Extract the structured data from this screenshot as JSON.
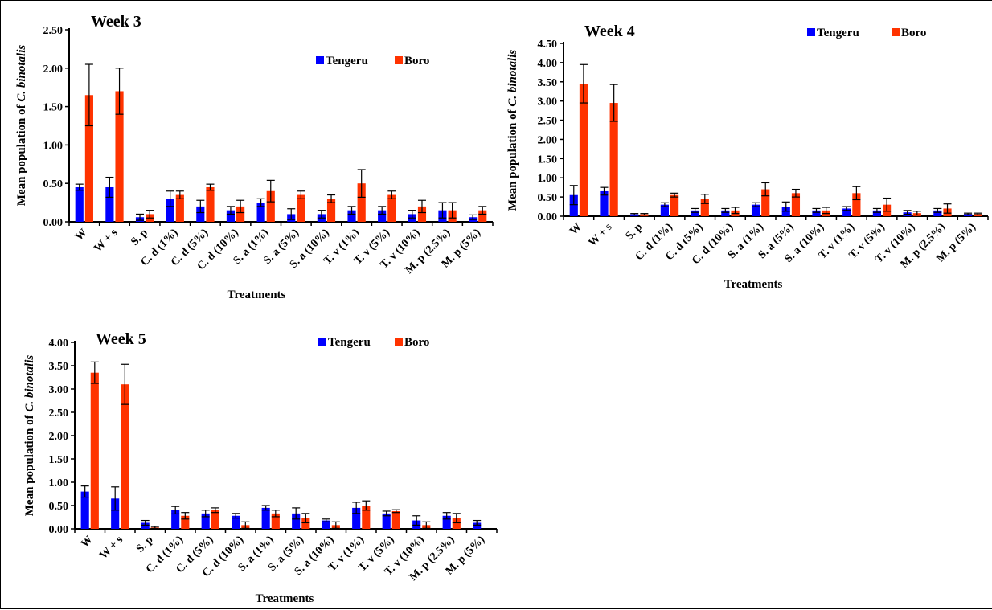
{
  "colors": {
    "tengeru": "#0000ff",
    "boro": "#ff3300"
  },
  "legend": [
    "Tengeru",
    "Boro"
  ],
  "chart_data": [
    {
      "type": "bar",
      "title": "Week 3",
      "xlabel": "Treatments",
      "ylabel_prefix": "Mean population  of ",
      "ylabel_italic": "C. binotalis",
      "ylim": [
        0,
        2.5
      ],
      "yticks": [
        "0.00",
        "0.50",
        "1.00",
        "1.50",
        "2.00",
        "2.50"
      ],
      "legend_position": "top-right",
      "categories": [
        "W",
        "W + s",
        "S. p",
        "C. d (1%)",
        "C. d (5%)",
        "C. d (10%)",
        "S. a (1%)",
        "S. a (5%)",
        "S. a (10%)",
        "T. v (1%)",
        "T. v (5%)",
        "T. v (10%)",
        "M. p (2.5%)",
        "M. p (5%)"
      ],
      "series": [
        {
          "name": "Tengeru",
          "values": [
            0.45,
            0.45,
            0.06,
            0.3,
            0.2,
            0.15,
            0.25,
            0.1,
            0.1,
            0.15,
            0.15,
            0.1,
            0.15,
            0.06
          ],
          "errors": [
            0.04,
            0.13,
            0.04,
            0.1,
            0.08,
            0.05,
            0.05,
            0.07,
            0.05,
            0.05,
            0.05,
            0.05,
            0.1,
            0.03
          ]
        },
        {
          "name": "Boro",
          "values": [
            1.65,
            1.7,
            0.1,
            0.35,
            0.45,
            0.2,
            0.4,
            0.35,
            0.3,
            0.5,
            0.35,
            0.2,
            0.15,
            0.15
          ],
          "errors": [
            0.4,
            0.3,
            0.05,
            0.05,
            0.04,
            0.08,
            0.14,
            0.05,
            0.05,
            0.18,
            0.05,
            0.08,
            0.1,
            0.05
          ]
        }
      ]
    },
    {
      "type": "bar",
      "title": "Week 4",
      "xlabel": "Treatments",
      "ylabel_prefix": "Mean population  of ",
      "ylabel_italic": "C. binotalis",
      "ylim": [
        0,
        4.5
      ],
      "yticks": [
        "0.00",
        "0.50",
        "1.00",
        "1.50",
        "2.00",
        "2.50",
        "3.00",
        "3.50",
        "4.00",
        "4.50"
      ],
      "legend_position": "top-right",
      "categories": [
        "W",
        "W + s",
        "S. p",
        "C. d (1%)",
        "C. d (5%)",
        "C. d (10%)",
        "S. a (1%)",
        "S. a (5%)",
        "S. a (10%)",
        "T. v (1%)",
        "T. v (5%)",
        "T. v (10%)",
        "M. p (2.5%)",
        "M. p (5%)"
      ],
      "series": [
        {
          "name": "Tengeru",
          "values": [
            0.55,
            0.65,
            0.05,
            0.3,
            0.15,
            0.15,
            0.3,
            0.25,
            0.15,
            0.2,
            0.15,
            0.1,
            0.15,
            0.06
          ],
          "errors": [
            0.25,
            0.1,
            0.02,
            0.05,
            0.05,
            0.05,
            0.05,
            0.12,
            0.05,
            0.05,
            0.05,
            0.05,
            0.05,
            0.02
          ]
        },
        {
          "name": "Boro",
          "values": [
            3.45,
            2.95,
            0.05,
            0.55,
            0.45,
            0.15,
            0.7,
            0.6,
            0.15,
            0.6,
            0.3,
            0.08,
            0.2,
            0.06
          ],
          "errors": [
            0.5,
            0.48,
            0.02,
            0.05,
            0.12,
            0.08,
            0.17,
            0.1,
            0.08,
            0.17,
            0.17,
            0.05,
            0.12,
            0.02
          ]
        }
      ]
    },
    {
      "type": "bar",
      "title": "Week 5",
      "xlabel": "Treatments",
      "ylabel_prefix": "Mean population  of ",
      "ylabel_italic": "C. binotalis",
      "ylim": [
        0,
        4.0
      ],
      "yticks": [
        "0.00",
        "0.50",
        "1.00",
        "1.50",
        "2.00",
        "2.50",
        "3.00",
        "3.50",
        "4.00"
      ],
      "legend_position": "top-right",
      "categories": [
        "W",
        "W + s",
        "S. p",
        "C. d (1%)",
        "C. d (5%)",
        "C. d (10%)",
        "S. a (1%)",
        "S. a (5%)",
        "S. a (10%)",
        "T. v (1%)",
        "T. v (5%)",
        "T. v (10%)",
        "M. p (2.5%)",
        "M. p (5%)"
      ],
      "series": [
        {
          "name": "Tengeru",
          "values": [
            0.8,
            0.65,
            0.13,
            0.4,
            0.33,
            0.28,
            0.45,
            0.33,
            0.18,
            0.45,
            0.33,
            0.18,
            0.28,
            0.13
          ],
          "errors": [
            0.12,
            0.25,
            0.05,
            0.08,
            0.07,
            0.05,
            0.05,
            0.12,
            0.03,
            0.12,
            0.05,
            0.1,
            0.07,
            0.05
          ]
        },
        {
          "name": "Boro",
          "values": [
            3.35,
            3.1,
            0.03,
            0.28,
            0.4,
            0.08,
            0.33,
            0.23,
            0.08,
            0.5,
            0.38,
            0.08,
            0.23,
            0.0
          ],
          "errors": [
            0.23,
            0.43,
            0.02,
            0.07,
            0.05,
            0.07,
            0.07,
            0.1,
            0.07,
            0.1,
            0.03,
            0.07,
            0.1,
            0.0
          ]
        }
      ]
    }
  ]
}
